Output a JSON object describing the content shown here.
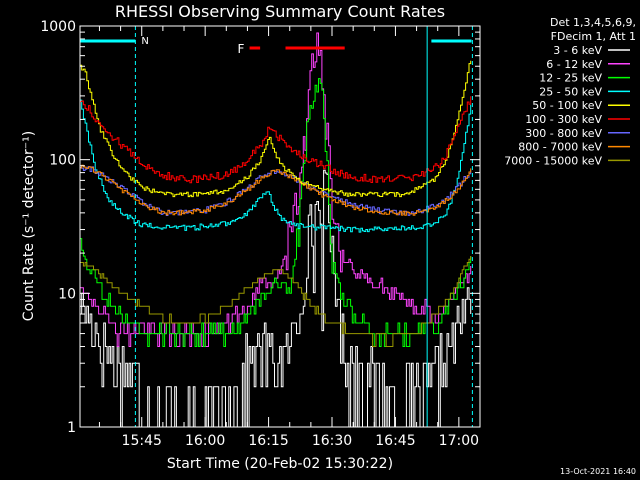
{
  "chart_data": {
    "type": "line",
    "title": "RHESSI Observing Summary Count Rates",
    "xlabel": "Start Time (20-Feb-02 15:30:22)",
    "ylabel": "Count Rate (s⁻¹ detector⁻¹)",
    "y_scale": "log",
    "ylim": [
      1,
      1000
    ],
    "y_ticks": [
      {
        "v": 1,
        "label": "1"
      },
      {
        "v": 10,
        "label": "10"
      },
      {
        "v": 100,
        "label": "100"
      },
      {
        "v": 1000,
        "label": "1000"
      }
    ],
    "x_unit": "minutes after 15:30",
    "xlim": [
      0.4,
      95
    ],
    "x_ticks": [
      {
        "t": 15,
        "label": "15:45"
      },
      {
        "t": 30,
        "label": "16:00"
      },
      {
        "t": 45,
        "label": "16:15"
      },
      {
        "t": 60,
        "label": "16:30"
      },
      {
        "t": 75,
        "label": "16:45"
      },
      {
        "t": 90,
        "label": "17:00"
      }
    ],
    "legend_title": [
      "Det 1,3,4,5,6,9,",
      "FDecim 1, Att 1"
    ],
    "legend_position": "right",
    "footer": "13-Oct-2021 16:40",
    "annotations": {
      "night_label": "N",
      "flare_label": "F",
      "night_bars": [
        [
          0.4,
          13.5
        ],
        [
          83.5,
          93
        ]
      ],
      "night_lines": [
        0.4,
        13.5,
        82.5,
        93.2
      ],
      "flare_bars": [
        [
          40.5,
          43
        ],
        [
          49,
          63
        ]
      ]
    },
    "series": [
      {
        "name": "3 - 6 keV",
        "color": "#ffffff",
        "noise": 0.9,
        "step": 0.4,
        "x": [
          0.4,
          3,
          6,
          10,
          13,
          15,
          20,
          30,
          35,
          40,
          44,
          48,
          51,
          53,
          55,
          57,
          58,
          59,
          60,
          61,
          62,
          64,
          70,
          75,
          80,
          85,
          87,
          89,
          91,
          93
        ],
        "y": [
          9,
          6,
          4,
          3,
          2.5,
          1.5,
          1.2,
          1.1,
          1.5,
          3,
          4,
          3,
          5,
          10,
          30,
          45,
          50,
          40,
          20,
          10,
          5,
          3,
          2,
          1.5,
          1.5,
          2.5,
          3.5,
          5,
          7,
          10
        ]
      },
      {
        "name": "6 - 12 keV",
        "color": "#ff44ff",
        "noise": 0.35,
        "step": 0.4,
        "x": [
          0.4,
          3,
          6,
          10,
          15,
          20,
          30,
          35,
          40,
          43,
          46,
          48,
          50,
          52,
          54,
          55,
          56,
          57,
          58,
          59,
          60,
          62,
          65,
          70,
          80,
          85,
          87,
          89,
          91,
          93
        ],
        "y": [
          12,
          9,
          7,
          5,
          5,
          5,
          5,
          6,
          8,
          12,
          12,
          15,
          30,
          60,
          200,
          450,
          750,
          600,
          300,
          120,
          40,
          20,
          15,
          12,
          8,
          7,
          8,
          10,
          12,
          15
        ]
      },
      {
        "name": "12 - 25 keV",
        "color": "#00ff00",
        "noise": 0.3,
        "step": 0.4,
        "x": [
          0.4,
          3,
          6,
          10,
          15,
          20,
          30,
          35,
          40,
          44,
          46,
          48,
          50,
          52,
          53,
          54,
          55,
          56,
          57,
          58,
          59,
          60,
          62,
          65,
          70,
          80,
          85,
          88,
          91,
          93
        ],
        "y": [
          20,
          15,
          10,
          7,
          5,
          5,
          5,
          5,
          7,
          10,
          12,
          12,
          10,
          30,
          80,
          150,
          250,
          350,
          450,
          250,
          60,
          20,
          10,
          7,
          5,
          5,
          6,
          9,
          13,
          18
        ]
      },
      {
        "name": "25 - 50 keV",
        "color": "#00ffff",
        "noise": 0.05,
        "step": 0.4,
        "x": [
          0.4,
          2,
          4,
          7,
          10,
          13,
          16,
          20,
          26,
          32,
          36,
          40,
          43,
          44.5,
          46,
          48,
          52,
          58,
          64,
          70,
          76,
          80,
          84,
          87,
          89,
          91,
          93
        ],
        "y": [
          270,
          160,
          85,
          50,
          40,
          35,
          32,
          31,
          31,
          32,
          34,
          40,
          52,
          60,
          45,
          36,
          32,
          31,
          30,
          30,
          31,
          31,
          33,
          40,
          60,
          120,
          270
        ]
      },
      {
        "name": "50 - 100 keV",
        "color": "#ffff00",
        "noise": 0.04,
        "step": 0.4,
        "x": [
          0.4,
          1.5,
          3,
          5,
          8,
          11,
          15,
          20,
          30,
          36,
          40,
          43,
          45,
          46,
          48,
          52,
          58,
          64,
          70,
          76,
          80,
          84,
          87,
          89,
          91,
          92.5,
          93
        ],
        "y": [
          500,
          450,
          300,
          170,
          110,
          80,
          62,
          55,
          55,
          60,
          75,
          100,
          150,
          120,
          90,
          70,
          60,
          55,
          55,
          55,
          60,
          70,
          100,
          170,
          320,
          520,
          550
        ]
      },
      {
        "name": "100 - 300 keV",
        "color": "#ff0000",
        "noise": 0.07,
        "step": 0.4,
        "x": [
          0.4,
          2,
          4,
          7,
          10,
          14,
          18,
          24,
          30,
          36,
          40,
          43,
          45,
          47,
          50,
          54,
          58,
          64,
          70,
          76,
          80,
          84,
          87,
          89,
          91,
          93
        ],
        "y": [
          270,
          250,
          200,
          160,
          130,
          100,
          80,
          72,
          72,
          80,
          100,
          130,
          170,
          150,
          120,
          100,
          90,
          75,
          72,
          72,
          75,
          85,
          110,
          150,
          220,
          300
        ]
      },
      {
        "name": "300 - 800 keV",
        "color": "#6666ff",
        "noise": 0.05,
        "step": 0.4,
        "x": [
          0.4,
          3,
          6,
          10,
          15,
          20,
          25,
          30,
          35,
          40,
          44,
          47,
          50,
          55,
          60,
          65,
          70,
          75,
          80,
          85,
          88,
          91,
          93
        ],
        "y": [
          88,
          85,
          75,
          62,
          48,
          40,
          40,
          42,
          48,
          62,
          78,
          82,
          75,
          62,
          52,
          46,
          42,
          40,
          40,
          46,
          55,
          70,
          85
        ]
      },
      {
        "name": "800 - 7000 keV",
        "color": "#ff8800",
        "noise": 0.04,
        "step": 0.4,
        "x": [
          0.4,
          3,
          6,
          10,
          15,
          20,
          25,
          30,
          35,
          40,
          44,
          47,
          50,
          55,
          60,
          65,
          70,
          75,
          80,
          85,
          88,
          91,
          93
        ],
        "y": [
          88,
          86,
          75,
          60,
          46,
          40,
          40,
          42,
          47,
          60,
          76,
          83,
          75,
          60,
          50,
          44,
          41,
          40,
          40,
          45,
          53,
          68,
          88
        ]
      },
      {
        "name": "7000 - 15000 keV",
        "color": "#999900",
        "noise": 0.08,
        "step": 0.4,
        "x": [
          0.4,
          3,
          6,
          10,
          15,
          20,
          25,
          30,
          35,
          40,
          44,
          47,
          50,
          52,
          55,
          60,
          65,
          70,
          75,
          80,
          83,
          86,
          89,
          91,
          93
        ],
        "y": [
          17,
          16,
          13,
          10,
          8,
          6.5,
          6,
          6.5,
          8,
          11,
          14,
          15,
          13,
          11,
          8,
          6,
          5,
          4.5,
          4.5,
          5,
          6,
          8,
          11,
          15,
          20
        ]
      }
    ]
  }
}
